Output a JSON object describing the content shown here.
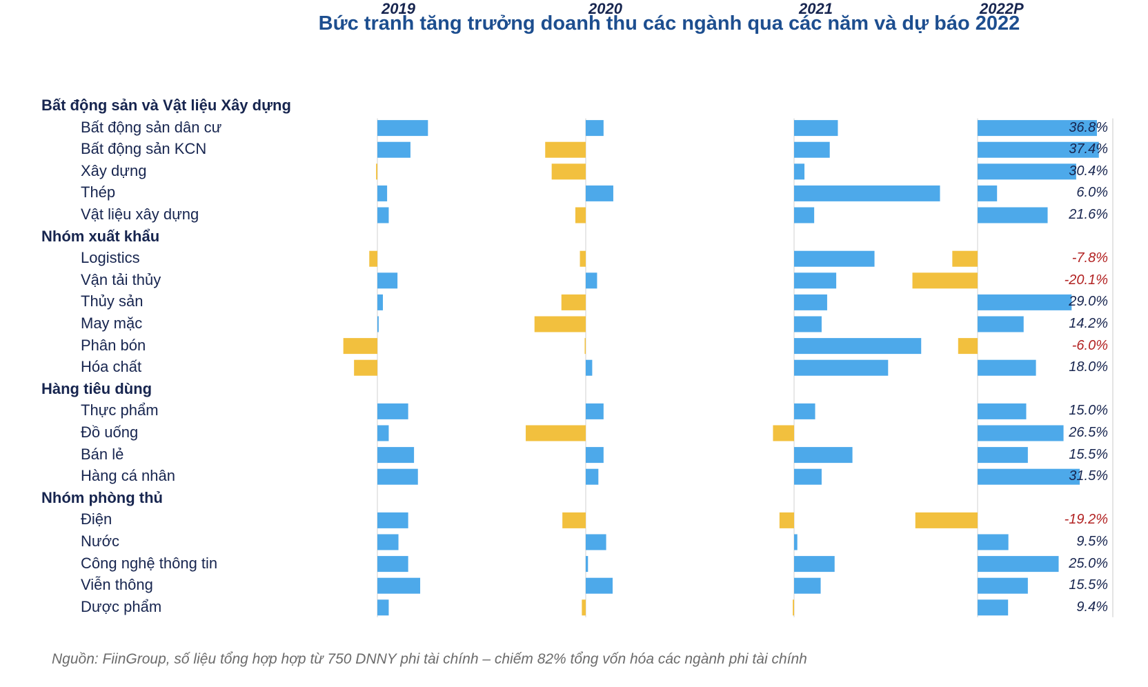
{
  "chart_data": {
    "type": "bar",
    "title": "Bức tranh tăng trưởng doanh thu các ngành qua các năm và dự báo 2022",
    "years": [
      "2019",
      "2020",
      "2021",
      "2022P"
    ],
    "colors": {
      "positive": "#4da9ea",
      "negative": "#f2c03e",
      "positive_label": "#17254f",
      "negative_label": "#b22222"
    },
    "groups": [
      {
        "name": "Bất động sản và Vật liệu Xây dựng",
        "categories": [
          "Bất động sản dân cư",
          "Bất động sản KCN",
          "Xây dựng",
          "Thép",
          "Vật liệu xây dựng"
        ]
      },
      {
        "name": "Nhóm xuất khẩu",
        "categories": [
          "Logistics",
          "Vận tải thủy",
          "Thủy sản",
          "May mặc",
          "Phân bón",
          "Hóa chất"
        ]
      },
      {
        "name": "Hàng tiêu dùng",
        "categories": [
          "Thực phẩm",
          "Đồ uống",
          "Bán lẻ",
          "Hàng cá nhân"
        ]
      },
      {
        "name": "Nhóm phòng thủ",
        "categories": [
          "Điện",
          "Nước",
          "Công nghệ thông tin",
          "Viễn thông",
          "Dược phẩm"
        ]
      }
    ],
    "series": [
      {
        "name": "2019",
        "values": [
          15.6,
          10.2,
          -0.4,
          3.0,
          3.5,
          -2.5,
          6.2,
          1.7,
          0.4,
          -10.5,
          -7.2,
          9.5,
          3.5,
          11.3,
          12.5,
          9.5,
          6.5,
          9.5,
          13.2,
          3.5
        ]
      },
      {
        "name": "2020",
        "values": [
          5.5,
          -12.5,
          -10.5,
          8.5,
          -3.2,
          -1.8,
          3.5,
          -7.5,
          -15.8,
          -0.2,
          2.0,
          5.5,
          -18.5,
          5.5,
          3.9,
          -7.2,
          6.3,
          0.7,
          8.3,
          -1.2
        ]
      },
      {
        "name": "2021",
        "values": [
          13.5,
          11.0,
          3.2,
          45.0,
          6.2,
          24.8,
          13.0,
          10.2,
          8.5,
          39.2,
          29.0,
          6.5,
          -6.5,
          18.0,
          8.5,
          -4.5,
          1.0,
          12.5,
          8.2,
          -0.4
        ]
      },
      {
        "name": "2022P",
        "values": [
          36.8,
          37.4,
          30.4,
          6.0,
          21.6,
          -7.8,
          -20.1,
          29.0,
          14.2,
          -6.0,
          18.0,
          15.0,
          26.5,
          15.5,
          31.5,
          -19.2,
          9.5,
          25.0,
          15.5,
          9.4
        ]
      }
    ],
    "value_labels": [
      "36.8%",
      "37.4%",
      "30.4%",
      "6.0%",
      "21.6%",
      "-7.8%",
      "-20.1%",
      "29.0%",
      "14.2%",
      "-6.0%",
      "18.0%",
      "15.0%",
      "26.5%",
      "15.5%",
      "31.5%",
      "-19.2%",
      "9.5%",
      "25.0%",
      "15.5%",
      "9.4%"
    ]
  },
  "source": "Nguồn: FiinGroup, số liệu tổng hợp hợp từ 750 DNNY phi tài chính – chiếm 82% tổng vốn hóa các ngành phi tài chính"
}
